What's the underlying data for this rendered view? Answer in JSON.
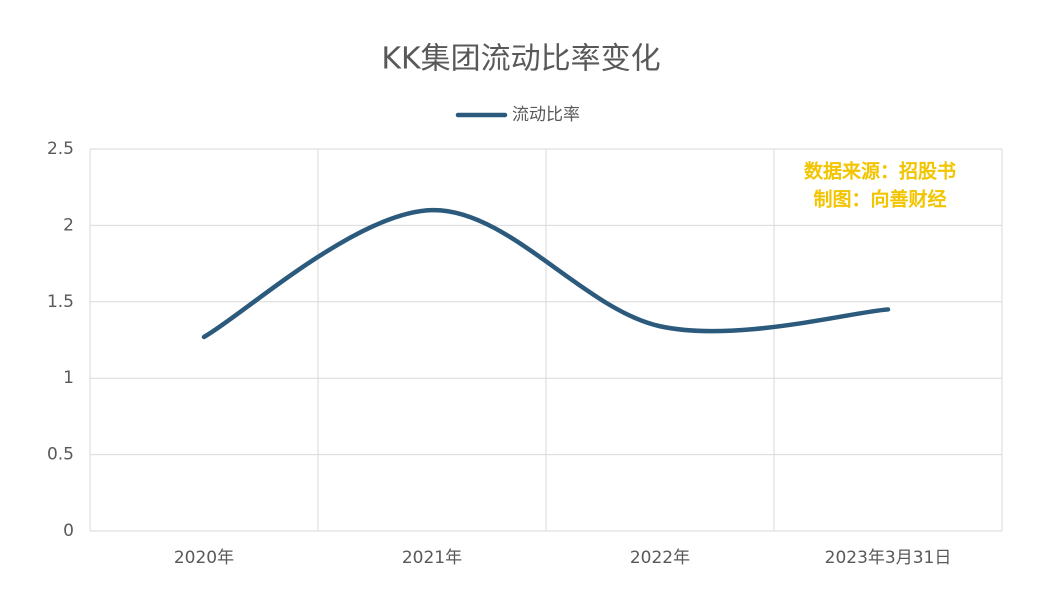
{
  "chart_data": {
    "type": "line",
    "title": "KK集团流动比率变化",
    "categories": [
      "2020年",
      "2021年",
      "2022年",
      "2023年3月31日"
    ],
    "series": [
      {
        "name": "流动比率",
        "color": "#2b5a7d",
        "values": [
          1.27,
          2.1,
          1.34,
          1.45
        ]
      }
    ],
    "ylim": [
      0,
      2.5
    ],
    "yticks": [
      0,
      0.5,
      1,
      1.5,
      2,
      2.5
    ],
    "grid": true,
    "legend": "top",
    "smooth": true,
    "annotations": [
      "数据来源：招股书",
      "制图：向善财经"
    ],
    "annotation_color": "#f2c500"
  }
}
